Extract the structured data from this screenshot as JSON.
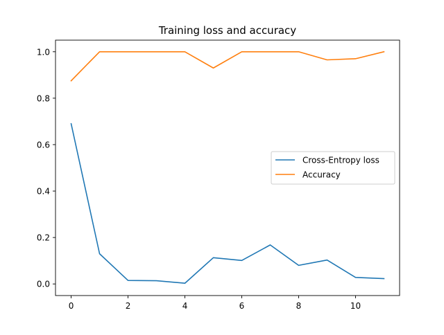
{
  "chart_data": {
    "type": "line",
    "title": "Training loss and accuracy",
    "xlabel": "",
    "ylabel": "",
    "x": [
      0,
      1,
      2,
      3,
      4,
      5,
      6,
      7,
      8,
      9,
      10,
      11
    ],
    "xlim": [
      -0.55,
      11.55
    ],
    "ylim": [
      -0.05,
      1.05
    ],
    "xticks": [
      0,
      2,
      4,
      6,
      8,
      10
    ],
    "yticks": [
      0.0,
      0.2,
      0.4,
      0.6,
      0.8,
      1.0
    ],
    "xtick_labels": [
      "0",
      "2",
      "4",
      "6",
      "8",
      "10"
    ],
    "ytick_labels": [
      "0.0",
      "0.2",
      "0.4",
      "0.6",
      "0.8",
      "1.0"
    ],
    "grid": false,
    "legend_position": "center-right",
    "series": [
      {
        "name": "Cross-Entropy loss",
        "color": "#1f77b4",
        "values": [
          0.69,
          0.13,
          0.015,
          0.014,
          0.003,
          0.113,
          0.101,
          0.168,
          0.08,
          0.103,
          0.028,
          0.023
        ]
      },
      {
        "name": "Accuracy",
        "color": "#ff7f0e",
        "values": [
          0.875,
          1.0,
          1.0,
          1.0,
          1.0,
          0.93,
          1.0,
          1.0,
          1.0,
          0.965,
          0.97,
          1.0
        ]
      }
    ]
  }
}
